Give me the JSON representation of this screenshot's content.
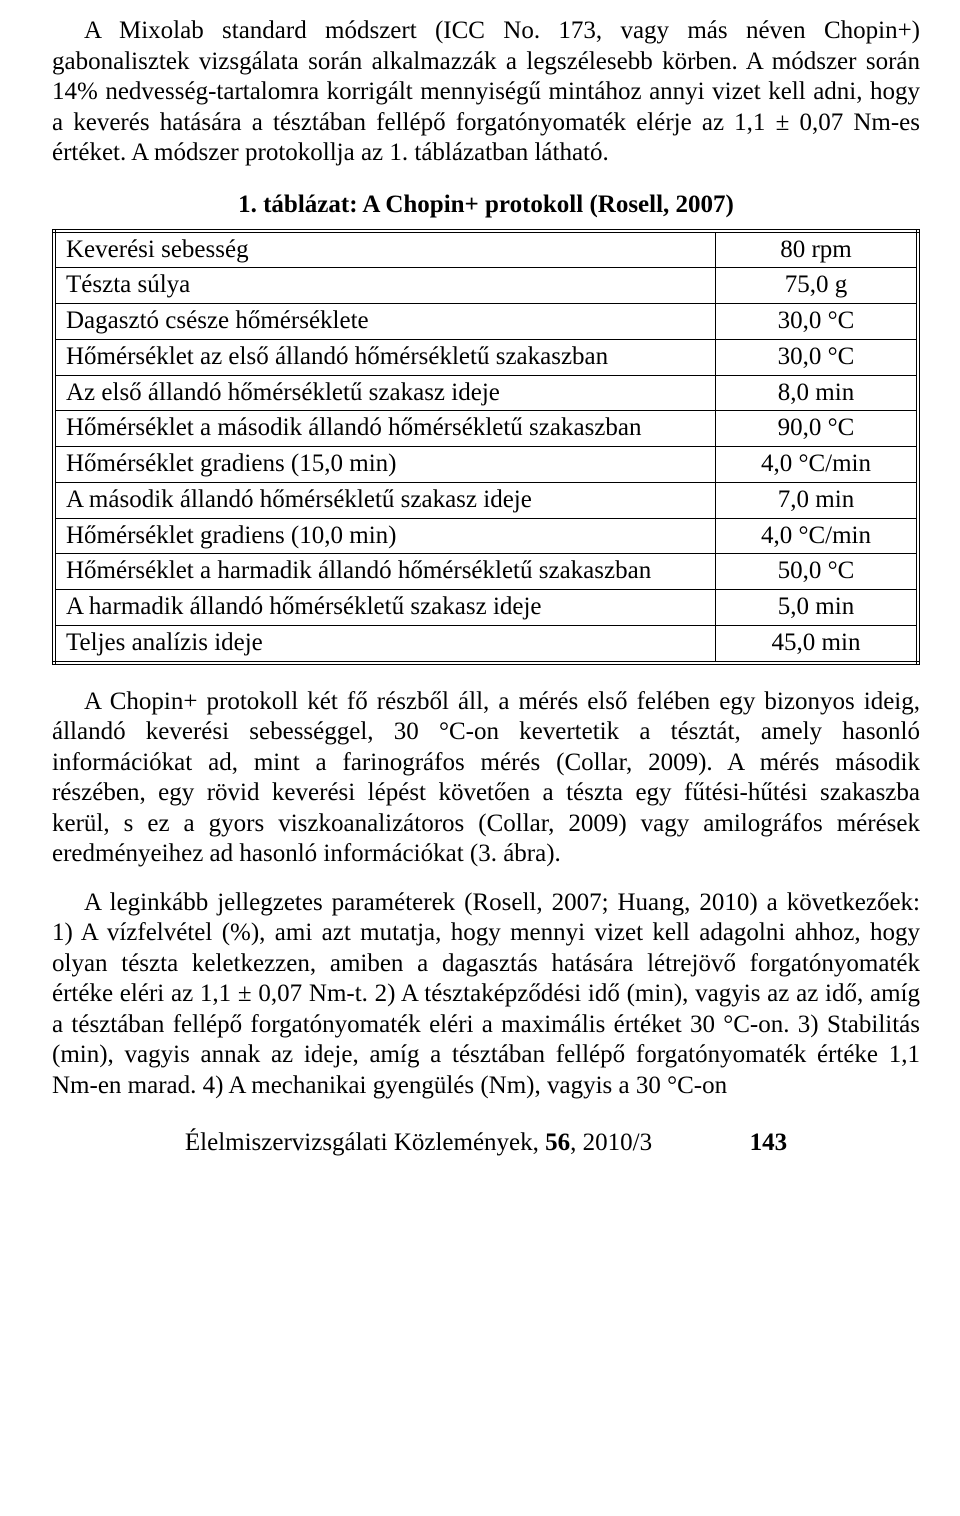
{
  "paragraphs": {
    "p1": "A Mixolab standard módszert (ICC No. 173, vagy más néven Chopin+) gabonalisztek vizsgálata során alkalmazzák a legszélesebb körben. A módszer során 14% nedvesség-tartalomra korrigált mennyiségű mintához annyi vizet kell adni, hogy a keverés hatására a tésztában fellépő forgatónyomaték elérje az 1,1 ± 0,07 Nm-es értéket. A módszer protokollja az 1. táblázatban látható.",
    "p2": "A Chopin+ protokoll két fő részből áll, a mérés első felében egy bizonyos ideig, állandó keverési sebességgel, 30 °C-on kevertetik a tésztát, amely hasonló információkat ad, mint a farinográfos mérés (Collar, 2009). A mérés második részében, egy rövid keverési lépést követően a tészta egy fűtési-hűtési szakaszba kerül, s ez a gyors viszkoanalizátoros (Collar, 2009) vagy amilográfos mérések eredményeihez ad hasonló információkat (3. ábra).",
    "p3": "A leginkább jellegzetes paraméterek (Rosell, 2007; Huang, 2010) a következőek: 1) A vízfelvétel (%), ami azt mutatja, hogy mennyi vizet kell adagolni ahhoz, hogy olyan tészta keletkezzen, amiben a dagasztás hatására létrejövő forgatónyomaték értéke eléri az 1,1 ± 0,07 Nm-t. 2) A tésztaképződési idő (min), vagyis az az idő, amíg a tésztában fellépő forgatónyomaték eléri a maximális értéket 30 °C-on. 3) Stabilitás (min), vagyis annak az ideje, amíg a tésztában fellépő forgatónyomaték értéke 1,1 Nm-en marad. 4) A mechanikai gyengülés (Nm), vagyis a 30 °C-on"
  },
  "table": {
    "caption": "1. táblázat: A Chopin+ protokoll (Rosell, 2007)",
    "rows": [
      {
        "param": "Keverési sebesség",
        "value": "80 rpm"
      },
      {
        "param": "Tészta súlya",
        "value": "75,0 g"
      },
      {
        "param": "Dagasztó csésze hőmérséklete",
        "value": "30,0 °C"
      },
      {
        "param": "Hőmérséklet az első állandó hőmérsékletű szakaszban",
        "value": "30,0 °C"
      },
      {
        "param": "Az első állandó hőmérsékletű szakasz ideje",
        "value": "8,0 min"
      },
      {
        "param": "Hőmérséklet a második állandó hőmérsékletű szakaszban",
        "value": "90,0 °C"
      },
      {
        "param": "Hőmérséklet gradiens (15,0 min)",
        "value": "4,0 °C/min"
      },
      {
        "param": "A második állandó hőmérsékletű szakasz ideje",
        "value": "7,0 min"
      },
      {
        "param": "Hőmérséklet gradiens (10,0 min)",
        "value": "4,0 °C/min"
      },
      {
        "param": "Hőmérséklet a harmadik állandó hőmérsékletű szakaszban",
        "value": "50,0 °C"
      },
      {
        "param": "A harmadik állandó hőmérsékletű szakasz ideje",
        "value": "5,0 min"
      },
      {
        "param": "Teljes analízis ideje",
        "value": "45,0 min"
      }
    ]
  },
  "footer": {
    "journal": "Élelmiszervizsgálati Közlemények, ",
    "volume": "56",
    "issue_year": ", 2010/3",
    "page": "143"
  }
}
